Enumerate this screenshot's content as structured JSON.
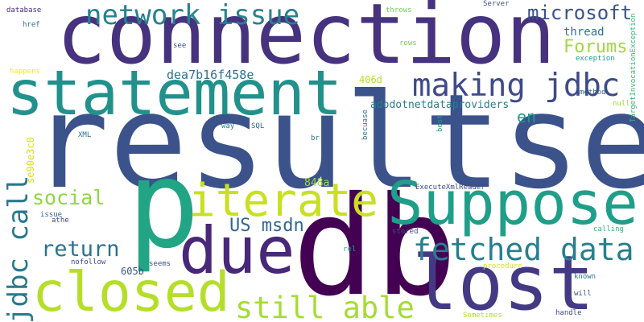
{
  "word_cloud": {
    "words": [
      {
        "text": "resultset",
        "color": "#3b528b"
      },
      {
        "text": "db",
        "color": "#440154"
      },
      {
        "text": "connection",
        "color": "#46327e"
      },
      {
        "text": "p",
        "color": "#21a585"
      },
      {
        "text": "statement",
        "color": "#21918c"
      },
      {
        "text": "Suppose",
        "color": "#1f9e89"
      },
      {
        "text": "lost",
        "color": "#443983"
      },
      {
        "text": "closed",
        "color": "#b5de2b"
      },
      {
        "text": "due",
        "color": "#482878"
      },
      {
        "text": "iterate",
        "color": "#c8e020"
      },
      {
        "text": "making jdbc",
        "color": "#3e4a89"
      },
      {
        "text": "network issue",
        "color": "#26828e"
      },
      {
        "text": "fetched data",
        "color": "#277f8e"
      },
      {
        "text": "jdbc call",
        "color": "#2a788e"
      },
      {
        "text": "still able",
        "color": "#a5db36"
      },
      {
        "text": "microsoft",
        "color": "#3b528b"
      },
      {
        "text": "Forums",
        "color": "#a0da39"
      },
      {
        "text": "US msdn",
        "color": "#31688e"
      },
      {
        "text": "return",
        "color": "#2c728e"
      },
      {
        "text": "social",
        "color": "#8fd744"
      },
      {
        "text": "en",
        "color": "#1f9a8a"
      },
      {
        "text": "dea7b16f458e",
        "color": "#2c728e"
      },
      {
        "text": "thread",
        "color": "#2a788e"
      },
      {
        "text": "adodotnetdataproviders",
        "color": "#277f8e"
      },
      {
        "text": "se90e3c0",
        "color": "#d8e219"
      },
      {
        "text": "848a",
        "color": "#a0da39"
      },
      {
        "text": "406d",
        "color": "#b5de2b"
      },
      {
        "text": "605b",
        "color": "#3b528b"
      },
      {
        "text": "TargetInvocationException",
        "color": "#35b779"
      },
      {
        "text": "ExecuteXmlReader",
        "color": "#3e4a89"
      },
      {
        "text": "database",
        "color": "#482878"
      },
      {
        "text": "href",
        "color": "#2c728e"
      },
      {
        "text": "throws",
        "color": "#6ece58"
      },
      {
        "text": "Server",
        "color": "#3b528b"
      },
      {
        "text": "see",
        "color": "#3e4a89"
      },
      {
        "text": "rows",
        "color": "#7ad151"
      },
      {
        "text": "exception",
        "color": "#1f9e89"
      },
      {
        "text": "method",
        "color": "#31688e"
      },
      {
        "text": "null",
        "color": "#a0da39"
      },
      {
        "text": "happens",
        "color": "#fde725"
      },
      {
        "text": "way",
        "color": "#2a788e"
      },
      {
        "text": "SQL",
        "color": "#31688e"
      },
      {
        "text": "br",
        "color": "#2c728e"
      },
      {
        "text": "becuase",
        "color": "#2a788e"
      },
      {
        "text": "best",
        "color": "#21a585"
      },
      {
        "text": "XML",
        "color": "#2c728e"
      },
      {
        "text": "issue",
        "color": "#31688e"
      },
      {
        "text": "athe",
        "color": "#3e4a89"
      },
      {
        "text": "stored",
        "color": "#3b528b"
      },
      {
        "text": "calling",
        "color": "#35b779"
      },
      {
        "text": "rel",
        "color": "#21a585"
      },
      {
        "text": "nofollow",
        "color": "#3e4a89"
      },
      {
        "text": "seems",
        "color": "#3b528b"
      },
      {
        "text": "procedure",
        "color": "#d8e219"
      },
      {
        "text": "known",
        "color": "#2c728e"
      },
      {
        "text": "will",
        "color": "#3b528b"
      },
      {
        "text": "handle",
        "color": "#3e4a89"
      },
      {
        "text": "Sometimes",
        "color": "#b5de2b"
      }
    ]
  }
}
